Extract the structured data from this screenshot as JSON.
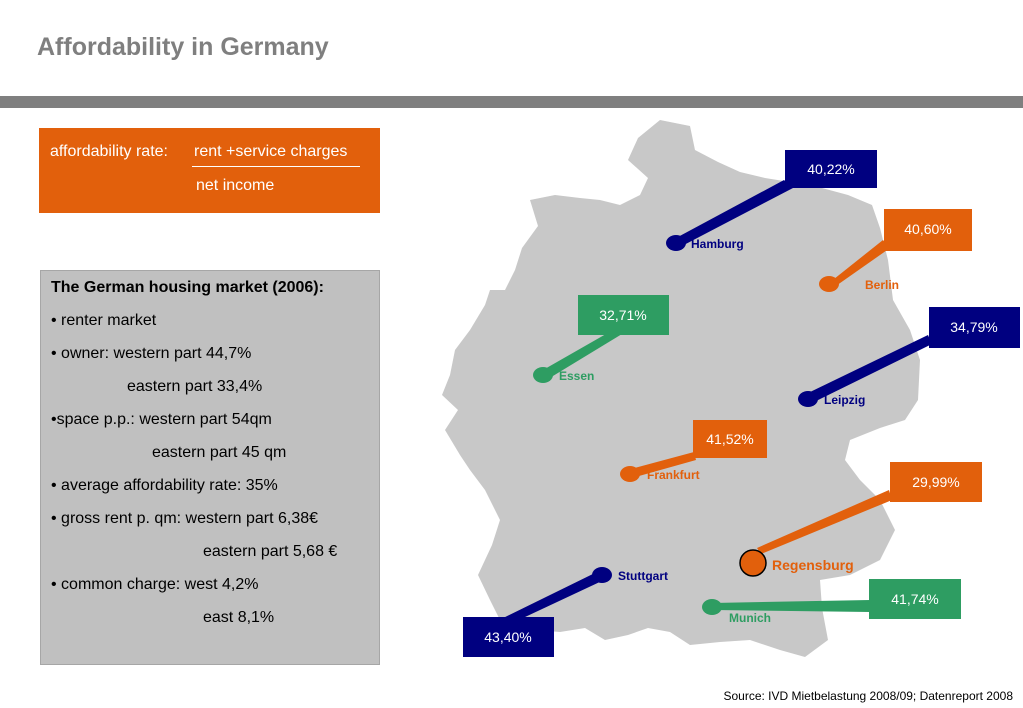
{
  "title": "Affordability in Germany",
  "formula": {
    "label": "affordability rate:",
    "numerator": "rent +service charges",
    "denominator": "net income",
    "color": "#e2600c"
  },
  "market": {
    "lines": [
      "The German housing market (2006):",
      "• renter market",
      "• owner:  western part 44,7%",
      "eastern part 33,4%",
      "•space p.p.: western part 54qm",
      "eastern part 45 qm",
      "• average affordability rate: 35%",
      "• gross rent p. qm: western part 6,38€",
      "eastern part 5,68 €",
      "• common charge: west 4,2%",
      "east 8,1%"
    ]
  },
  "colors": {
    "navy": "#000080",
    "orange": "#e2600c",
    "green": "#2e9d62",
    "map_gray": "#c8c8c8",
    "title_gray": "#7f7f7f"
  },
  "cities": [
    {
      "name": "Hamburg",
      "rate": "40,22%",
      "color": "navy"
    },
    {
      "name": "Berlin",
      "rate": "40,60%",
      "color": "orange"
    },
    {
      "name": "Essen",
      "rate": "32,71%",
      "color": "green"
    },
    {
      "name": "Leipzig",
      "rate": "34,79%",
      "color": "navy"
    },
    {
      "name": "Frankfurt",
      "rate": "41,52%",
      "color": "orange"
    },
    {
      "name": "Regensburg",
      "rate": "29,99%",
      "color": "orange",
      "highlighted": true
    },
    {
      "name": "Stuttgart",
      "rate": "43,40%",
      "color": "navy"
    },
    {
      "name": "Munich",
      "rate": "41,74%",
      "color": "green"
    }
  ],
  "source": "Source: IVD Mietbelastung 2008/09; Datenreport 2008"
}
